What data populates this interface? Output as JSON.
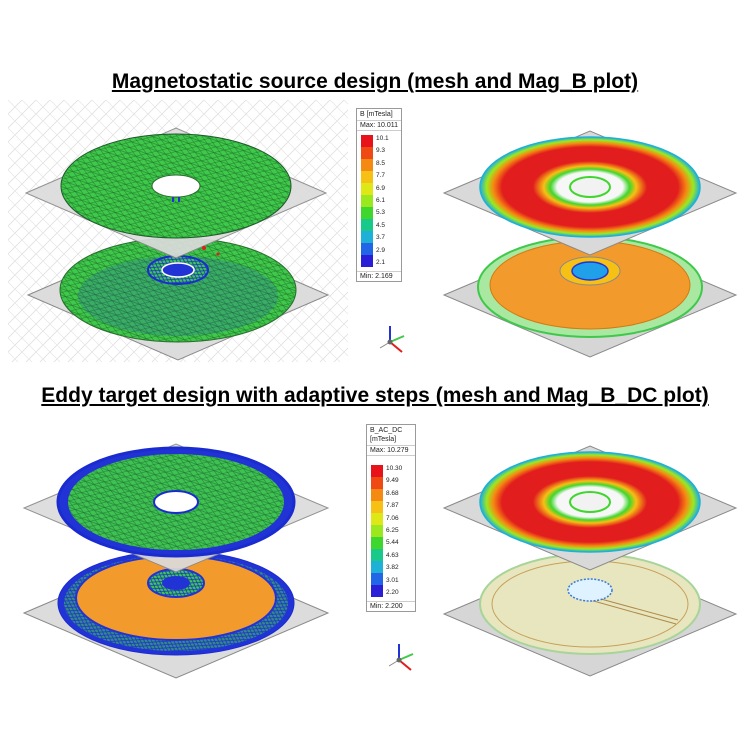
{
  "sections": [
    {
      "title": "Magnetostatic source design (mesh and Mag_B plot)",
      "legend": {
        "header": "B [mTesla]",
        "max_label": "Max: 10.011",
        "min_label": "Min: 2.169",
        "ticks": [
          "10.1",
          "9.3",
          "8.5",
          "7.7",
          "6.9",
          "6.1",
          "5.3",
          "4.5",
          "3.7",
          "2.9",
          "2.1"
        ]
      }
    },
    {
      "title": "Eddy target design with adaptive steps (mesh and Mag_B_DC plot)",
      "legend": {
        "header": "B_AC_DC [mTesla]",
        "max_label": "Max: 10.279",
        "min_label": "Min: 2.200",
        "ticks": [
          "10.30",
          "9.49",
          "8.68",
          "7.87",
          "7.06",
          "6.25",
          "5.44",
          "4.63",
          "3.82",
          "3.01",
          "2.20"
        ]
      }
    }
  ],
  "colorscale": [
    "#e8131a",
    "#f04a14",
    "#f58a12",
    "#f7c014",
    "#dfe817",
    "#9ce81f",
    "#3fd62d",
    "#18c98a",
    "#1fb0d8",
    "#2266e8",
    "#2a1fd6"
  ],
  "colors": {
    "hot": "#e11d1d",
    "orange": "#f39a2c",
    "mesh_green": "#3fc94a",
    "mesh_blue": "#2233d6",
    "sheet": "#d9d9d9",
    "sheet_edge": "#8a8a8a"
  }
}
